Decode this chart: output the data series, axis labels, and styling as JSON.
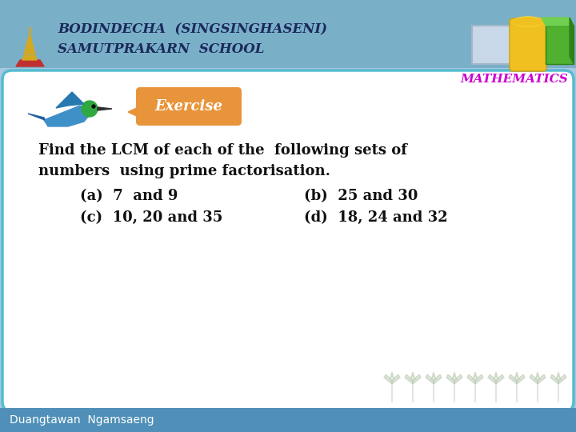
{
  "bg_color": "#a8c8e0",
  "header_color": "#7aafc8",
  "header_text1": "BODINDECHA  (SINGSINGHASENI)",
  "header_text2": "SAMUTPRAKARN  SCHOOL",
  "math_text": "MATHEMATICS",
  "math_color": "#cc00cc",
  "footer_text": "Duangtawan  Ngamsaeng",
  "footer_bg": "#5090b8",
  "content_bg": "#ffffff",
  "content_border": "#55bbd0",
  "exercise_bg": "#e8943a",
  "exercise_text": "Exercise",
  "main_line1": "Find the LCM of each of the  following sets of",
  "main_line2": "numbers  using prime factorisation.",
  "item_a": "(a)  7  and 9",
  "item_b": "(b)  25 and 30",
  "item_c": "(c)  10, 20 and 35",
  "item_d": "(d)  18, 24 and 32",
  "text_color": "#111111",
  "header_font_color": "#1a2a5a",
  "header_font_size": 12,
  "math_font_size": 11,
  "main_font_size": 13,
  "item_font_size": 13
}
